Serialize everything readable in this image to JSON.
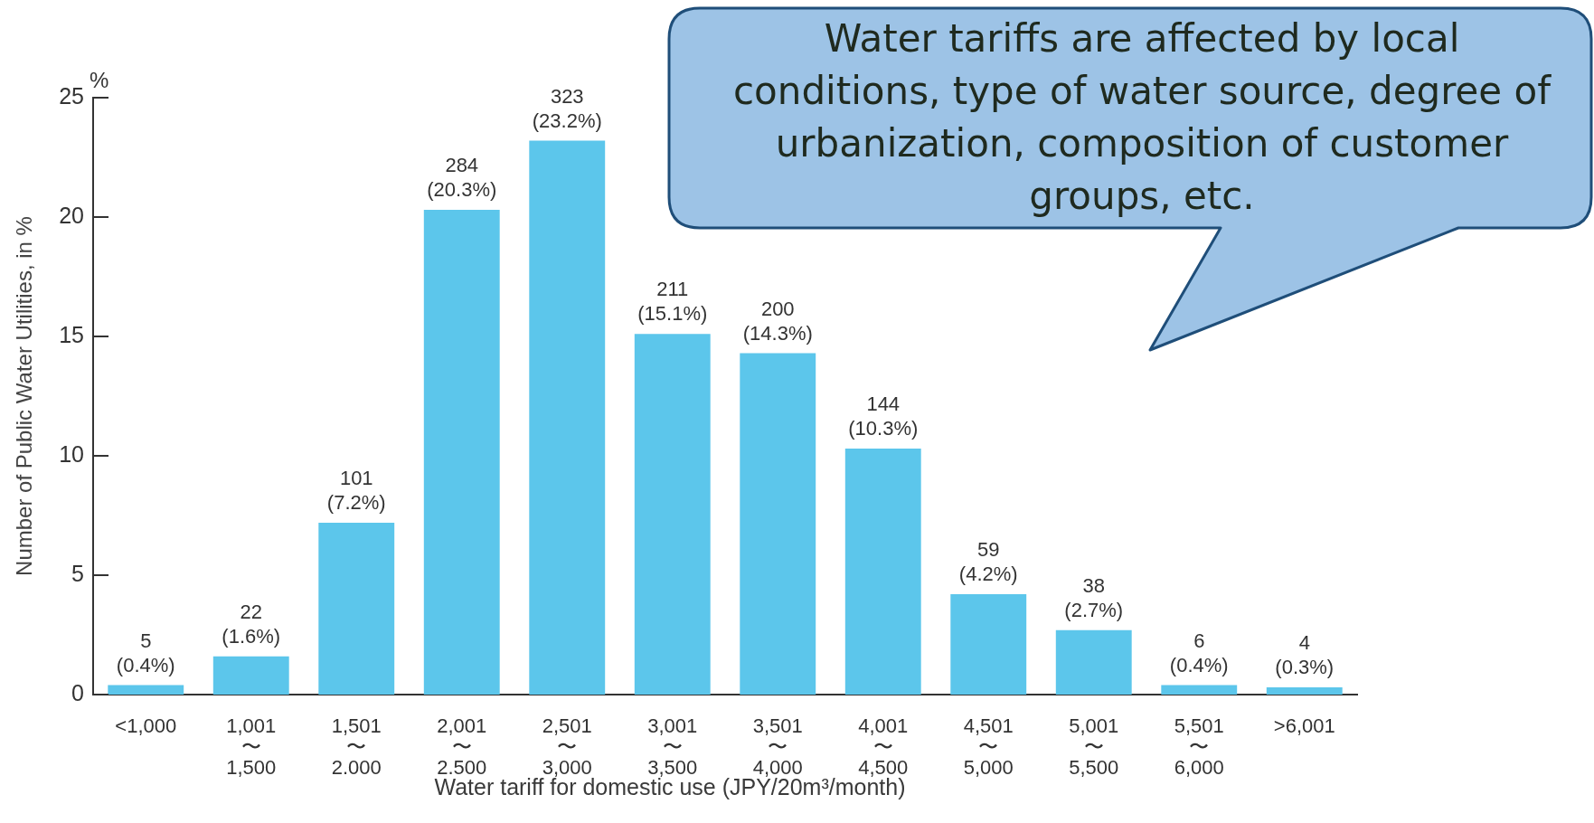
{
  "chart_data": {
    "type": "bar",
    "ylabel": "Number of Public Water Utilities, in %",
    "xlabel": "Water tariff for domestic use (JPY/20m³/month)",
    "categories": [
      "<1,000",
      "1,001\n〜\n1,500",
      "1,501\n〜\n2.000",
      "2,001\n〜\n2.500",
      "2,501\n〜\n3,000",
      "3,001\n〜\n3,500",
      "3,501\n〜\n4,000",
      "4,001\n〜\n4,500",
      "4,501\n〜\n5,000",
      "5,001\n〜\n5,500",
      "5,501\n〜\n6,000",
      ">6,001"
    ],
    "values": [
      0.4,
      1.6,
      7.2,
      20.3,
      23.2,
      15.1,
      14.3,
      10.3,
      4.2,
      2.7,
      0.4,
      0.3
    ],
    "value_labels": [
      "5\n(0.4%)",
      "22\n(1.6%)",
      "101\n(7.2%)",
      "284\n(20.3%)",
      "323\n(23.2%)",
      "211\n(15.1%)",
      "200\n(14.3%)",
      "144\n(10.3%)",
      "59\n(4.2%)",
      "38\n(2.7%)",
      "6\n(0.4%)",
      "4\n(0.3%)"
    ],
    "color": "#5cc6eb",
    "ylim": [
      0,
      25
    ],
    "yticks": [
      0,
      5,
      10,
      15,
      20,
      25
    ],
    "grid": false,
    "legend": false,
    "annotations": [
      "%",
      "Water tariffs are affected by local conditions, type of water source, degree of urbanization, composition of customer groups, etc."
    ]
  }
}
